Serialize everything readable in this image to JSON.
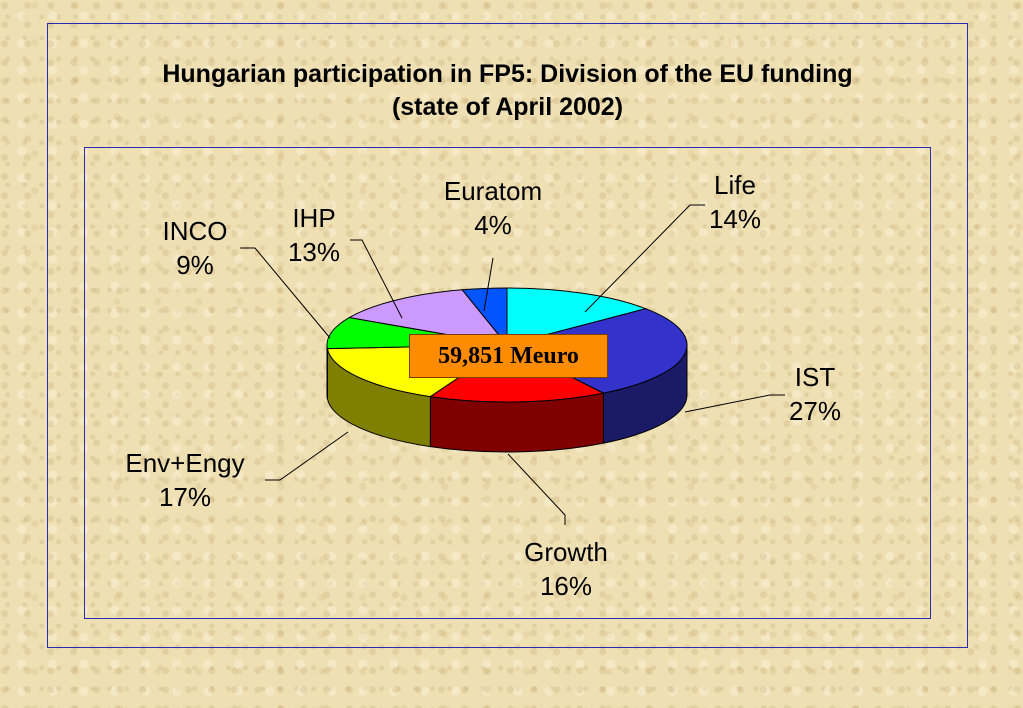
{
  "title_line1": "Hungarian participation in FP5: Division of the EU funding",
  "title_line2": "(state of April 2002)",
  "total_label": "59,851 Meuro",
  "chart_data": {
    "type": "pie",
    "variant": "3d",
    "slices": [
      {
        "name": "Life",
        "value": 14,
        "label": "14%",
        "color": "#00ffff"
      },
      {
        "name": "IST",
        "value": 27,
        "label": "27%",
        "color": "#3333cc"
      },
      {
        "name": "Growth",
        "value": 16,
        "label": "16%",
        "color": "#ff0000"
      },
      {
        "name": "Env+Engy",
        "value": 17,
        "label": "17%",
        "color": "#ffff00"
      },
      {
        "name": "INCO",
        "value": 9,
        "label": "9%",
        "color": "#00ff00"
      },
      {
        "name": "IHP",
        "value": 13,
        "label": "13%",
        "color": "#cc99ff"
      },
      {
        "name": "Euratom",
        "value": 4,
        "label": "4%",
        "color": "#0055ff"
      }
    ]
  }
}
